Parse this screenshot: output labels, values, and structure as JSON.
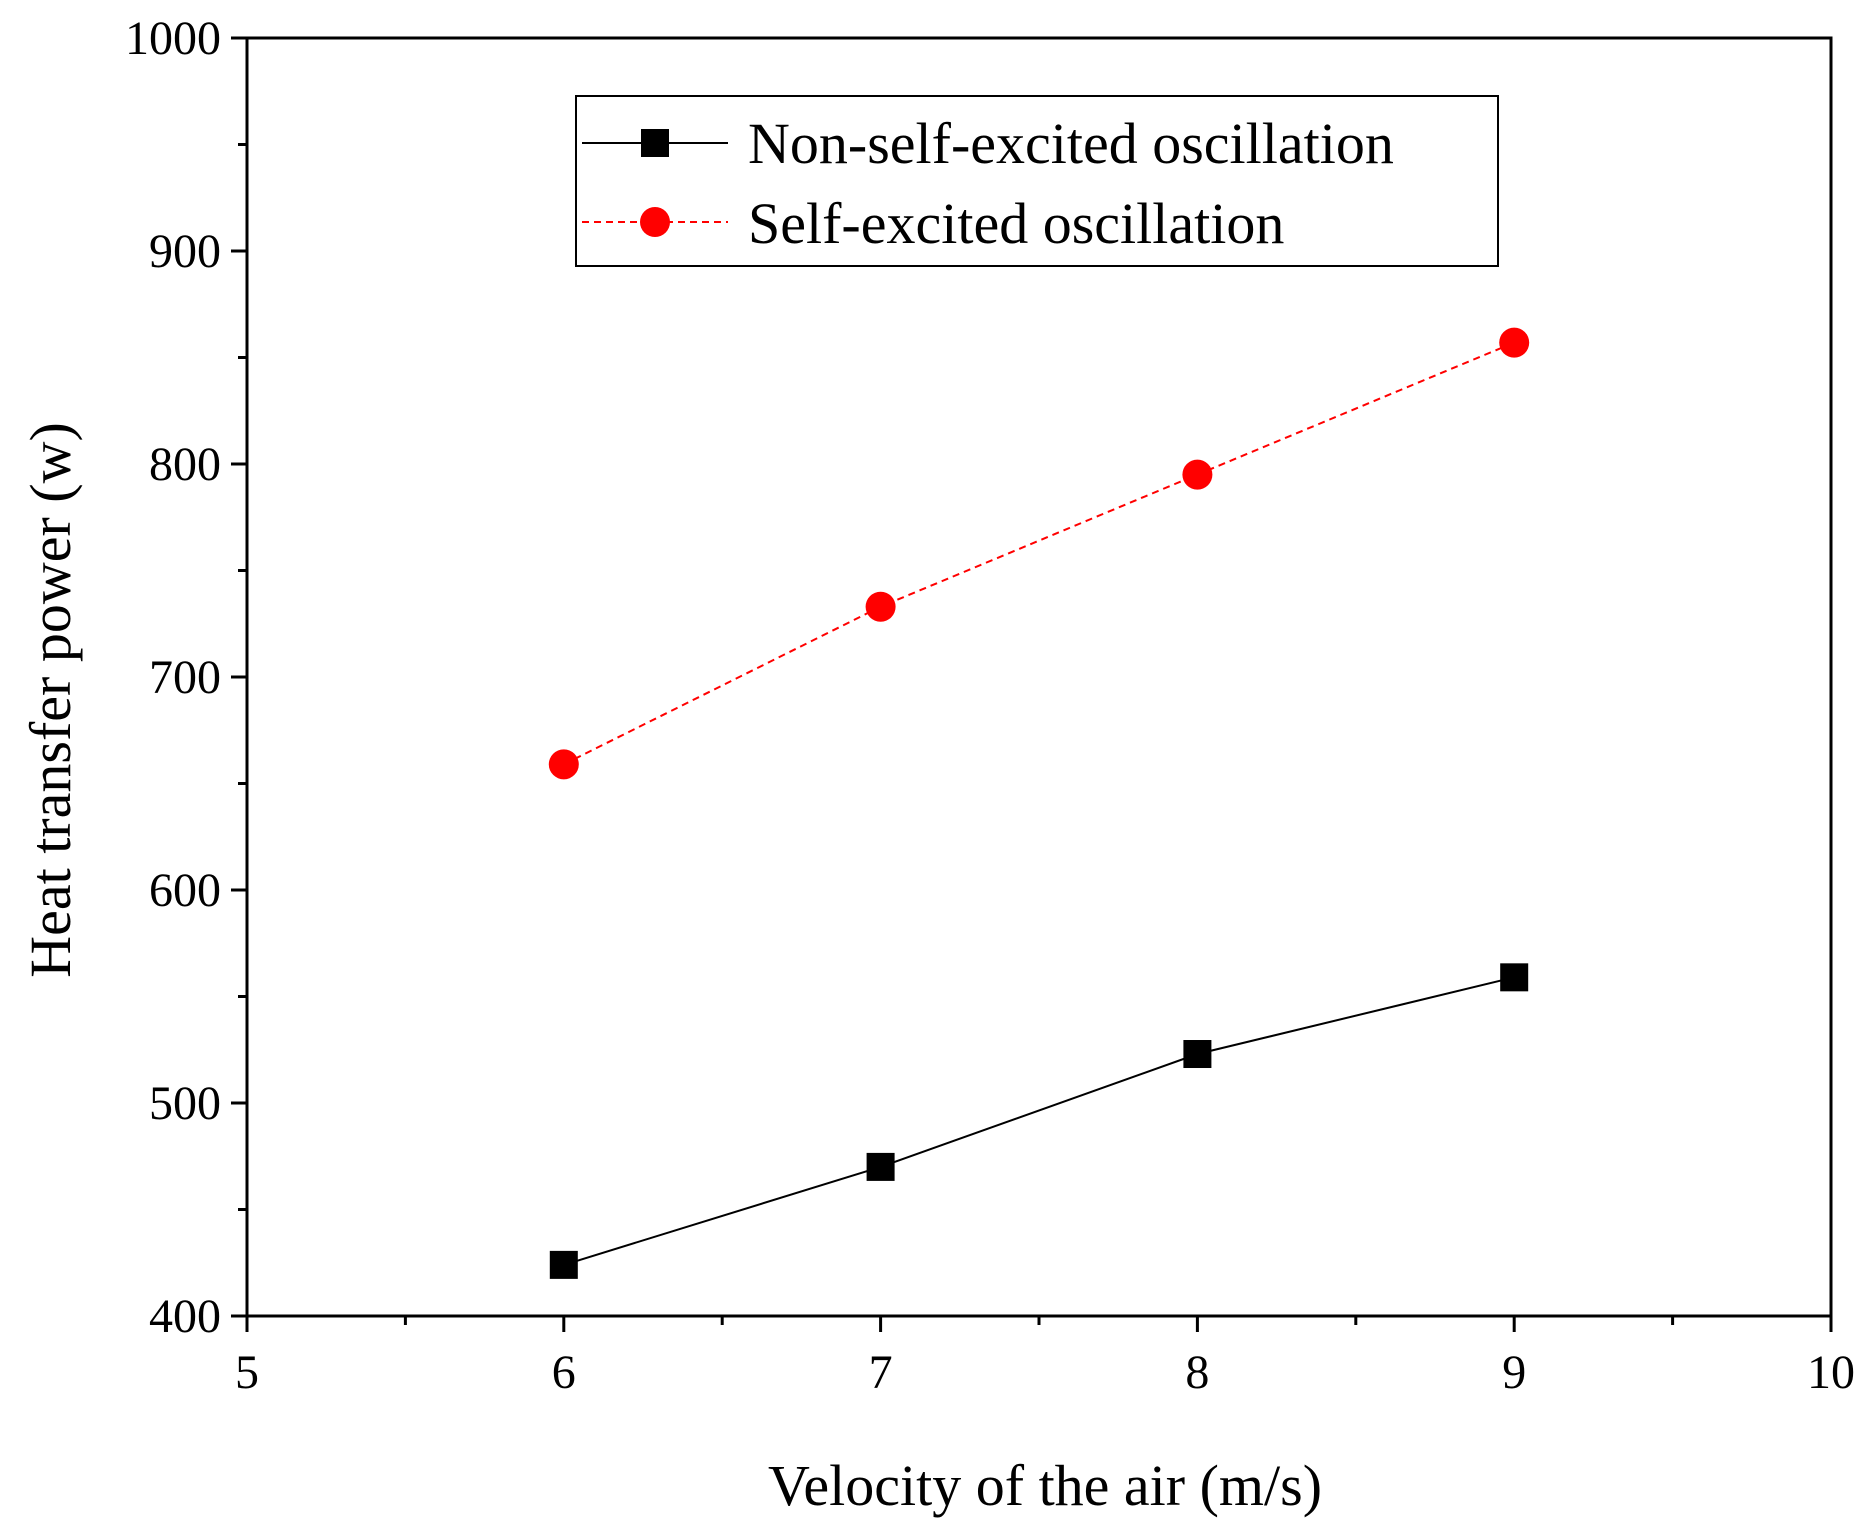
{
  "chart_data": {
    "type": "line",
    "title": "",
    "xlabel": "Velocity of the air (m/s)",
    "ylabel": "Heat transfer power (w)",
    "xlim": [
      5,
      10
    ],
    "ylim": [
      400,
      1000
    ],
    "xticks": [
      5,
      6,
      7,
      8,
      9,
      10
    ],
    "yticks": [
      400,
      500,
      600,
      700,
      800,
      900,
      1000
    ],
    "xtick_labels": [
      "5",
      "6",
      "7",
      "8",
      "9",
      "10"
    ],
    "ytick_labels": [
      "400",
      "500",
      "600",
      "700",
      "800",
      "900",
      "1000"
    ],
    "grid": false,
    "legend_position": "top-center",
    "x": [
      6,
      7,
      8,
      9
    ],
    "series": [
      {
        "name": "Non-self-excited oscillation",
        "values": [
          424,
          470,
          523,
          559
        ],
        "color": "#000000",
        "marker": "square",
        "line_style": "solid"
      },
      {
        "name": "Self-excited oscillation",
        "values": [
          659,
          733,
          795,
          857
        ],
        "color": "#ff0000",
        "marker": "circle",
        "line_style": "dashed"
      }
    ]
  }
}
